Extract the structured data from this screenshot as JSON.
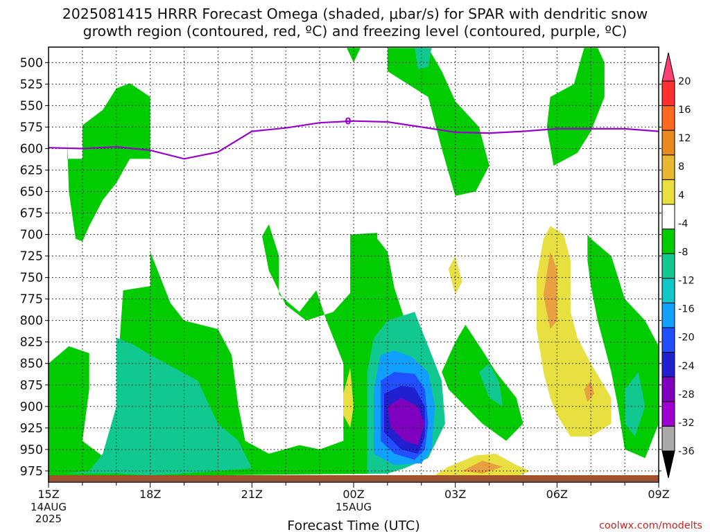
{
  "chart_data": {
    "type": "heatmap",
    "title": [
      "2025081415 HRRR Forecast Omega (shaded, μbar/s) for SPAR with dendritic snow",
      "growth region (contoured, red, ºC) and freezing level (contoured, purple, ºC)"
    ],
    "xlabel": "Forecast Time (UTC)",
    "ylabel": "",
    "y_axis": {
      "scale": "pressure (hPa), inverted",
      "ticks": [
        500,
        525,
        550,
        575,
        600,
        625,
        650,
        675,
        700,
        725,
        750,
        775,
        800,
        825,
        850,
        875,
        900,
        925,
        950,
        975
      ],
      "ylim": [
        482,
        988
      ]
    },
    "x_axis": {
      "ticks": [
        "15Z",
        "18Z",
        "21Z",
        "00Z",
        "03Z",
        "06Z",
        "09Z"
      ],
      "tick_hours": [
        0,
        3,
        6,
        9,
        12,
        15,
        18
      ],
      "sublabels": [
        {
          "hour": 0,
          "lines": [
            "14AUG",
            "2025"
          ]
        },
        {
          "hour": 9,
          "lines": [
            "15AUG"
          ]
        }
      ],
      "xlim": [
        0,
        18
      ]
    },
    "grid": true,
    "colorbar": {
      "placement": "right",
      "labels": [
        "20",
        "16",
        "12",
        "8",
        "4",
        "-4",
        "-8",
        "-12",
        "-16",
        "-20",
        "-24",
        "-28",
        "-32",
        "-36"
      ],
      "colors": [
        "#ff4070",
        "#ff3030",
        "#ff6a20",
        "#e88a1e",
        "#e8b830",
        "#e8e040",
        "#ffffff",
        "#00cc00",
        "#10c890",
        "#10c8c8",
        "#10a0ff",
        "#2050ff",
        "#2020d0",
        "#8000c0",
        "#a000d0",
        "#aaaaaa",
        "#000000"
      ]
    },
    "freezing_level": {
      "label": "0",
      "color": "#9900cc",
      "points": [
        [
          0,
          599
        ],
        [
          1,
          600
        ],
        [
          2,
          598
        ],
        [
          3,
          602
        ],
        [
          4,
          612
        ],
        [
          5,
          604
        ],
        [
          6,
          580
        ],
        [
          7,
          576
        ],
        [
          8,
          570
        ],
        [
          9,
          568
        ],
        [
          10,
          569
        ],
        [
          11,
          575
        ],
        [
          12,
          581
        ],
        [
          13,
          582
        ],
        [
          14,
          580
        ],
        [
          15,
          577
        ],
        [
          16,
          577
        ],
        [
          17,
          577
        ],
        [
          18,
          580
        ]
      ]
    },
    "terrain_color": "#a0522d",
    "omega_regions": [
      {
        "level": -8,
        "color": "#00cc00",
        "points": [
          [
            0.55,
            590
          ],
          [
            0.55,
            612
          ],
          [
            1.0,
            612
          ],
          [
            1.0,
            573
          ],
          [
            1.6,
            555
          ],
          [
            2.0,
            530
          ],
          [
            2.4,
            524
          ],
          [
            3.0,
            540
          ],
          [
            3.0,
            612
          ],
          [
            2.4,
            612
          ],
          [
            2.0,
            640
          ],
          [
            1.6,
            660
          ],
          [
            1.2,
            690
          ],
          [
            1.0,
            708
          ],
          [
            0.8,
            705
          ],
          [
            0.6,
            650
          ]
        ]
      },
      {
        "level": -8,
        "color": "#00cc00",
        "points": [
          [
            0,
            850
          ],
          [
            0.6,
            830
          ],
          [
            1.2,
            838
          ],
          [
            1.2,
            880
          ],
          [
            1.0,
            940
          ],
          [
            1.6,
            958
          ],
          [
            2.3,
            955
          ],
          [
            2.3,
            920
          ],
          [
            2.0,
            880
          ],
          [
            2.2,
            765
          ],
          [
            3.0,
            760
          ],
          [
            3.0,
            720
          ],
          [
            3.6,
            780
          ],
          [
            4.0,
            800
          ],
          [
            5.0,
            810
          ],
          [
            5.4,
            840
          ],
          [
            5.6,
            900
          ],
          [
            5.8,
            940
          ],
          [
            6.5,
            955
          ],
          [
            7.4,
            945
          ],
          [
            8.0,
            950
          ],
          [
            8.7,
            940
          ],
          [
            8.7,
            850
          ],
          [
            8.2,
            800
          ],
          [
            7.9,
            765
          ],
          [
            7.4,
            790
          ],
          [
            6.8,
            770
          ],
          [
            6.8,
            725
          ],
          [
            6.5,
            688
          ],
          [
            6.3,
            702
          ],
          [
            6.5,
            742
          ],
          [
            7.0,
            782
          ],
          [
            7.6,
            800
          ],
          [
            8.4,
            790
          ],
          [
            8.9,
            768
          ],
          [
            8.9,
            700
          ],
          [
            9.7,
            698
          ],
          [
            9.7,
            705
          ],
          [
            10.0,
            720
          ],
          [
            10.2,
            762
          ],
          [
            10.6,
            810
          ],
          [
            10.8,
            860
          ],
          [
            10.8,
            900
          ],
          [
            10.6,
            950
          ],
          [
            10.0,
            978
          ],
          [
            0,
            982
          ]
        ]
      },
      {
        "level": -8,
        "color": "#00cc00",
        "points": [
          [
            8.8,
            483
          ],
          [
            9.0,
            500
          ],
          [
            9.2,
            483
          ]
        ]
      },
      {
        "level": -8,
        "color": "#00cc00",
        "points": [
          [
            10.0,
            483
          ],
          [
            11.2,
            483
          ],
          [
            11.6,
            510
          ],
          [
            12.0,
            545
          ],
          [
            12.7,
            575
          ],
          [
            13.0,
            620
          ],
          [
            12.6,
            650
          ],
          [
            12.0,
            655
          ],
          [
            11.6,
            600
          ],
          [
            11.2,
            540
          ],
          [
            10.4,
            520
          ],
          [
            10.0,
            510
          ]
        ]
      },
      {
        "level": -8,
        "color": "#00cc00",
        "points": [
          [
            11.6,
            860
          ],
          [
            12.0,
            825
          ],
          [
            12.3,
            805
          ],
          [
            12.8,
            835
          ],
          [
            13.2,
            860
          ],
          [
            13.8,
            890
          ],
          [
            14.0,
            920
          ],
          [
            13.5,
            940
          ],
          [
            12.8,
            920
          ],
          [
            11.8,
            880
          ]
        ]
      },
      {
        "level": -8,
        "color": "#00cc00",
        "points": [
          [
            14.7,
            575
          ],
          [
            14.8,
            540
          ],
          [
            15.5,
            525
          ],
          [
            15.8,
            483
          ],
          [
            16.2,
            483
          ],
          [
            16.4,
            500
          ],
          [
            16.4,
            540
          ],
          [
            16.0,
            580
          ],
          [
            15.6,
            605
          ],
          [
            14.9,
            620
          ]
        ]
      },
      {
        "level": -8,
        "color": "#00cc00",
        "points": [
          [
            15.9,
            700
          ],
          [
            16.0,
            705
          ],
          [
            16.6,
            725
          ],
          [
            17.0,
            775
          ],
          [
            17.6,
            800
          ],
          [
            18.0,
            830
          ],
          [
            18.0,
            920
          ],
          [
            17.6,
            960
          ],
          [
            17.0,
            950
          ],
          [
            16.8,
            900
          ],
          [
            16.6,
            860
          ],
          [
            16.4,
            830
          ],
          [
            16.2,
            800
          ],
          [
            16.0,
            760
          ],
          [
            15.9,
            730
          ]
        ]
      },
      {
        "level": -12,
        "color": "#10c890",
        "points": [
          [
            10.8,
            483
          ],
          [
            11.3,
            483
          ],
          [
            11.2,
            505
          ],
          [
            10.9,
            508
          ]
        ]
      },
      {
        "level": -12,
        "color": "#10c890",
        "points": [
          [
            0.5,
            978
          ],
          [
            1.2,
            975
          ],
          [
            1.6,
            955
          ],
          [
            2.0,
            900
          ],
          [
            2.0,
            820
          ],
          [
            2.5,
            828
          ],
          [
            3.0,
            840
          ],
          [
            4.4,
            870
          ],
          [
            5.0,
            920
          ],
          [
            5.6,
            940
          ],
          [
            6.0,
            972
          ],
          [
            4.0,
            978
          ],
          [
            3.0,
            980
          ],
          [
            2.0,
            978
          ]
        ]
      },
      {
        "level": -12,
        "color": "#10c890",
        "points": [
          [
            9.4,
            978
          ],
          [
            9.4,
            860
          ],
          [
            9.6,
            820
          ],
          [
            10.0,
            800
          ],
          [
            10.8,
            790
          ],
          [
            11.2,
            830
          ],
          [
            11.6,
            870
          ],
          [
            11.7,
            920
          ],
          [
            11.2,
            960
          ],
          [
            10.5,
            972
          ],
          [
            10.0,
            978
          ]
        ]
      },
      {
        "level": -12,
        "color": "#10c890",
        "points": [
          [
            12.7,
            860
          ],
          [
            13.0,
            850
          ],
          [
            13.3,
            872
          ],
          [
            13.4,
            900
          ],
          [
            13.0,
            890
          ]
        ]
      },
      {
        "level": -12,
        "color": "#10c890",
        "points": [
          [
            17.0,
            880
          ],
          [
            17.4,
            860
          ],
          [
            17.6,
            900
          ],
          [
            17.3,
            935
          ],
          [
            17.0,
            920
          ]
        ]
      },
      {
        "level": -16,
        "color": "#10a0ff",
        "points": [
          [
            9.6,
            955
          ],
          [
            9.6,
            880
          ],
          [
            9.8,
            840
          ],
          [
            10.2,
            835
          ],
          [
            10.7,
            842
          ],
          [
            11.2,
            860
          ],
          [
            11.4,
            900
          ],
          [
            11.3,
            950
          ],
          [
            11.0,
            966
          ],
          [
            10.2,
            968
          ]
        ]
      },
      {
        "level": -20,
        "color": "#2050ff",
        "points": [
          [
            9.8,
            940
          ],
          [
            9.8,
            870
          ],
          [
            10.2,
            860
          ],
          [
            10.8,
            862
          ],
          [
            11.1,
            880
          ],
          [
            11.2,
            920
          ],
          [
            11.1,
            950
          ],
          [
            10.8,
            962
          ],
          [
            10.2,
            955
          ]
        ]
      },
      {
        "level": -24,
        "color": "#2020d0",
        "points": [
          [
            9.9,
            930
          ],
          [
            9.9,
            885
          ],
          [
            10.4,
            876
          ],
          [
            10.8,
            878
          ],
          [
            11.1,
            900
          ],
          [
            11.1,
            935
          ],
          [
            10.9,
            955
          ],
          [
            10.4,
            950
          ]
        ]
      },
      {
        "level": -28,
        "color": "#8000c0",
        "points": [
          [
            10.0,
            900
          ],
          [
            10.4,
            890
          ],
          [
            10.9,
            900
          ],
          [
            11.1,
            920
          ],
          [
            10.9,
            945
          ],
          [
            10.5,
            940
          ],
          [
            10.1,
            925
          ]
        ]
      },
      {
        "level": 4,
        "color": "#e8e040",
        "points": [
          [
            8.7,
            885
          ],
          [
            8.9,
            855
          ],
          [
            9.0,
            900
          ],
          [
            8.9,
            925
          ],
          [
            8.7,
            910
          ]
        ]
      },
      {
        "level": 4,
        "color": "#e8e040",
        "points": [
          [
            11.8,
            740
          ],
          [
            12.0,
            725
          ],
          [
            12.2,
            755
          ],
          [
            12.0,
            770
          ]
        ]
      },
      {
        "level": 4,
        "color": "#e8e040",
        "points": [
          [
            14.4,
            750
          ],
          [
            14.6,
            705
          ],
          [
            14.8,
            690
          ],
          [
            15.2,
            700
          ],
          [
            15.4,
            730
          ],
          [
            15.4,
            790
          ],
          [
            15.6,
            820
          ],
          [
            16.0,
            850
          ],
          [
            16.6,
            890
          ],
          [
            16.6,
            920
          ],
          [
            16.0,
            935
          ],
          [
            15.4,
            935
          ],
          [
            15.0,
            910
          ],
          [
            14.8,
            890
          ],
          [
            14.6,
            860
          ],
          [
            14.4,
            810
          ]
        ]
      },
      {
        "level": 4,
        "color": "#e8e040",
        "points": [
          [
            11.4,
            980
          ],
          [
            11.8,
            970
          ],
          [
            12.6,
            957
          ],
          [
            13.2,
            955
          ],
          [
            13.8,
            968
          ],
          [
            14.2,
            975
          ],
          [
            13.8,
            982
          ],
          [
            12.6,
            983
          ]
        ]
      },
      {
        "level": 8,
        "color": "#e8a040",
        "points": [
          [
            14.6,
            770
          ],
          [
            14.8,
            720
          ],
          [
            15.0,
            740
          ],
          [
            15.0,
            800
          ],
          [
            14.8,
            810
          ]
        ]
      },
      {
        "level": 8,
        "color": "#e8a040",
        "points": [
          [
            15.8,
            880
          ],
          [
            16.0,
            870
          ],
          [
            16.1,
            885
          ],
          [
            15.9,
            895
          ]
        ]
      },
      {
        "level": 8,
        "color": "#e8a040",
        "points": [
          [
            12.2,
            975
          ],
          [
            12.8,
            963
          ],
          [
            13.4,
            970
          ],
          [
            12.8,
            978
          ]
        ]
      }
    ]
  },
  "credit": "coolwx.com/modelts",
  "colors": {
    "credit": "#cc2222",
    "grid": "#000000"
  }
}
